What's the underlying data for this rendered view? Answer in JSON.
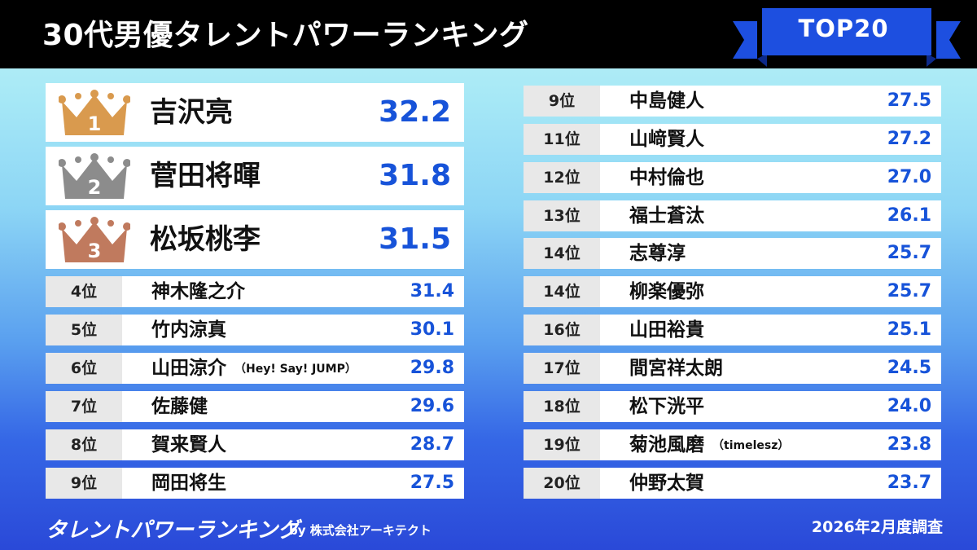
{
  "header": {
    "title": "30代男優タレントパワーランキング",
    "badge": "TOP20"
  },
  "colors": {
    "score": "#1753d9",
    "gold": "#d99a4e",
    "silver": "#8c8c8c",
    "bronze": "#c07a5e",
    "ribbon": "#1d4fe0"
  },
  "top3": [
    {
      "rank": "1",
      "name": "吉沢亮",
      "score": "32.2",
      "icon": "gold-crown-icon"
    },
    {
      "rank": "2",
      "name": "菅田将暉",
      "score": "31.8",
      "icon": "silver-crown-icon"
    },
    {
      "rank": "3",
      "name": "松坂桃李",
      "score": "31.5",
      "icon": "bronze-crown-icon"
    }
  ],
  "left_list": [
    {
      "rank": "4位",
      "name": "神木隆之介",
      "note": "",
      "score": "31.4"
    },
    {
      "rank": "5位",
      "name": "竹内涼真",
      "note": "",
      "score": "30.1"
    },
    {
      "rank": "6位",
      "name": "山田涼介",
      "note": "（Hey! Say! JUMP）",
      "score": "29.8"
    },
    {
      "rank": "7位",
      "name": "佐藤健",
      "note": "",
      "score": "29.6"
    },
    {
      "rank": "8位",
      "name": "賀来賢人",
      "note": "",
      "score": "28.7"
    },
    {
      "rank": "9位",
      "name": "岡田将生",
      "note": "",
      "score": "27.5"
    }
  ],
  "right_list": [
    {
      "rank": "9位",
      "name": "中島健人",
      "note": "",
      "score": "27.5"
    },
    {
      "rank": "11位",
      "name": "山﨑賢人",
      "note": "",
      "score": "27.2"
    },
    {
      "rank": "12位",
      "name": "中村倫也",
      "note": "",
      "score": "27.0"
    },
    {
      "rank": "13位",
      "name": "福士蒼汰",
      "note": "",
      "score": "26.1"
    },
    {
      "rank": "14位",
      "name": "志尊淳",
      "note": "",
      "score": "25.7"
    },
    {
      "rank": "14位",
      "name": "柳楽優弥",
      "note": "",
      "score": "25.7"
    },
    {
      "rank": "16位",
      "name": "山田裕貴",
      "note": "",
      "score": "25.1"
    },
    {
      "rank": "17位",
      "name": "間宮祥太朗",
      "note": "",
      "score": "24.5"
    },
    {
      "rank": "18位",
      "name": "松下洸平",
      "note": "",
      "score": "24.0"
    },
    {
      "rank": "19位",
      "name": "菊池風磨",
      "note": "（timelesz）",
      "score": "23.8"
    },
    {
      "rank": "20位",
      "name": "仲野太賀",
      "note": "",
      "score": "23.7"
    }
  ],
  "footer": {
    "logo": "タレントパワーランキング",
    "by": "by 株式会社アーキテクト",
    "date": "2026年2月度調査"
  }
}
